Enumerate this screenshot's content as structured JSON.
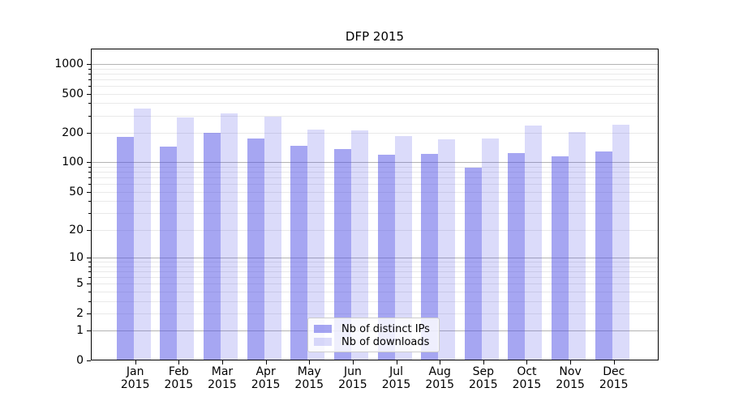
{
  "chart_data": {
    "type": "bar",
    "title": "DFP 2015",
    "xlabel": "",
    "ylabel": "",
    "yscale": "log1p",
    "ylim": [
      0,
      1440
    ],
    "grid": "horizontal",
    "categories": [
      "Jan 2015",
      "Feb 2015",
      "Mar 2015",
      "Apr 2015",
      "May 2015",
      "Jun 2015",
      "Jul 2015",
      "Aug 2015",
      "Sep 2015",
      "Oct 2015",
      "Nov 2015",
      "Dec 2015"
    ],
    "x_tick_month": [
      "Jan",
      "Feb",
      "Mar",
      "Apr",
      "May",
      "Jun",
      "Jul",
      "Aug",
      "Sep",
      "Oct",
      "Nov",
      "Dec"
    ],
    "x_tick_year": [
      "2015",
      "2015",
      "2015",
      "2015",
      "2015",
      "2015",
      "2015",
      "2015",
      "2015",
      "2015",
      "2015",
      "2015"
    ],
    "series": [
      {
        "name": "Nb of distinct IPs",
        "color": "rgba(77,77,230,0.5)",
        "color_on_white": "#a6a6f2",
        "values": [
          181,
          145,
          199,
          174,
          147,
          138,
          120,
          122,
          89,
          124,
          115,
          130
        ]
      },
      {
        "name": "Nb of downloads",
        "color": "rgba(77,77,230,0.2)",
        "color_on_white": "#dbdbfa",
        "values": [
          350,
          289,
          313,
          293,
          217,
          212,
          185,
          171,
          174,
          239,
          203,
          242
        ]
      }
    ],
    "y_ticks": [
      0,
      1,
      2,
      5,
      10,
      20,
      50,
      100,
      200,
      500,
      1000
    ],
    "y_gridlines_major": [
      1,
      10,
      100,
      1000
    ],
    "y_gridlines_minor": [
      2,
      3,
      4,
      5,
      6,
      7,
      8,
      9,
      20,
      30,
      40,
      50,
      60,
      70,
      80,
      90,
      200,
      300,
      400,
      500,
      600,
      700,
      800,
      900
    ],
    "legend": {
      "position": "lower-center",
      "entries": [
        "Nb of distinct IPs",
        "Nb of downloads"
      ]
    },
    "colors": {
      "background": "#ffffff",
      "spine": "#000000",
      "text": "#000000",
      "major_grid": "#b3b3b3",
      "minor_grid": "#e9e9e9",
      "legend_border": "#cccccc"
    }
  }
}
